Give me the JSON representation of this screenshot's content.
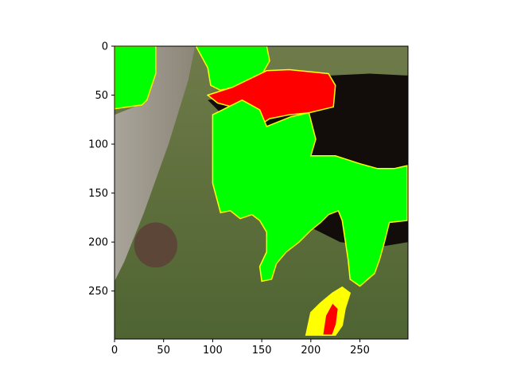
{
  "chart_data": {
    "type": "image",
    "title": "",
    "xlabel": "",
    "ylabel": "",
    "xlim": [
      0,
      299
    ],
    "ylim": [
      299,
      0
    ],
    "x_ticks": [
      0,
      50,
      100,
      150,
      200,
      250
    ],
    "y_ticks": [
      0,
      50,
      100,
      150,
      200,
      250
    ],
    "x_tick_labels": [
      "0",
      "50",
      "100",
      "150",
      "200",
      "250"
    ],
    "y_tick_labels": [
      "0",
      "50",
      "100",
      "150",
      "200",
      "250"
    ],
    "image_content": "photo of a dark cat on grass next to a tree trunk, with a small mouse on the left",
    "overlay_colors": {
      "green": "#00ff00",
      "red": "#ff0000",
      "outline": "#ffff00"
    },
    "regions": [
      {
        "name": "green-mask-left",
        "color": "green",
        "points": [
          [
            0,
            0
          ],
          [
            42,
            0
          ],
          [
            42,
            28
          ],
          [
            33,
            55
          ],
          [
            28,
            60
          ],
          [
            0,
            64
          ]
        ]
      },
      {
        "name": "green-mask-top",
        "color": "green",
        "points": [
          [
            83,
            0
          ],
          [
            155,
            0
          ],
          [
            158,
            15
          ],
          [
            145,
            38
          ],
          [
            128,
            40
          ],
          [
            108,
            45
          ],
          [
            98,
            40
          ],
          [
            95,
            22
          ]
        ]
      },
      {
        "name": "red-mask",
        "color": "red",
        "points": [
          [
            95,
            50
          ],
          [
            120,
            42
          ],
          [
            155,
            25
          ],
          [
            178,
            24
          ],
          [
            218,
            28
          ],
          [
            225,
            40
          ],
          [
            223,
            62
          ],
          [
            198,
            68
          ],
          [
            178,
            70
          ],
          [
            158,
            74
          ],
          [
            152,
            78
          ],
          [
            140,
            68
          ],
          [
            120,
            62
          ],
          [
            105,
            58
          ]
        ]
      },
      {
        "name": "green-mask-body",
        "color": "green",
        "points": [
          [
            100,
            70
          ],
          [
            130,
            55
          ],
          [
            148,
            65
          ],
          [
            155,
            82
          ],
          [
            180,
            72
          ],
          [
            198,
            68
          ],
          [
            205,
            95
          ],
          [
            200,
            112
          ],
          [
            225,
            112
          ],
          [
            250,
            120
          ],
          [
            268,
            125
          ],
          [
            285,
            125
          ],
          [
            298,
            122
          ],
          [
            298,
            178
          ],
          [
            280,
            180
          ],
          [
            275,
            200
          ],
          [
            270,
            218
          ],
          [
            265,
            232
          ],
          [
            250,
            245
          ],
          [
            240,
            238
          ],
          [
            238,
            218
          ],
          [
            235,
            198
          ],
          [
            232,
            178
          ],
          [
            228,
            168
          ],
          [
            218,
            172
          ],
          [
            210,
            180
          ],
          [
            200,
            188
          ],
          [
            188,
            200
          ],
          [
            175,
            210
          ],
          [
            165,
            222
          ],
          [
            160,
            238
          ],
          [
            150,
            240
          ],
          [
            148,
            225
          ],
          [
            155,
            210
          ],
          [
            155,
            190
          ],
          [
            148,
            178
          ],
          [
            140,
            172
          ],
          [
            128,
            176
          ],
          [
            118,
            168
          ],
          [
            108,
            170
          ],
          [
            100,
            140
          ],
          [
            100,
            115
          ]
        ]
      },
      {
        "name": "yellow-speckle-bottom",
        "color": "outline",
        "points": [
          [
            195,
            295
          ],
          [
            200,
            272
          ],
          [
            210,
            262
          ],
          [
            222,
            252
          ],
          [
            232,
            246
          ],
          [
            240,
            252
          ],
          [
            235,
            268
          ],
          [
            232,
            285
          ],
          [
            225,
            295
          ]
        ]
      },
      {
        "name": "red-speckle-bottom",
        "color": "red",
        "points": [
          [
            212,
            295
          ],
          [
            215,
            275
          ],
          [
            222,
            262
          ],
          [
            228,
            268
          ],
          [
            226,
            284
          ],
          [
            222,
            295
          ]
        ]
      }
    ]
  }
}
